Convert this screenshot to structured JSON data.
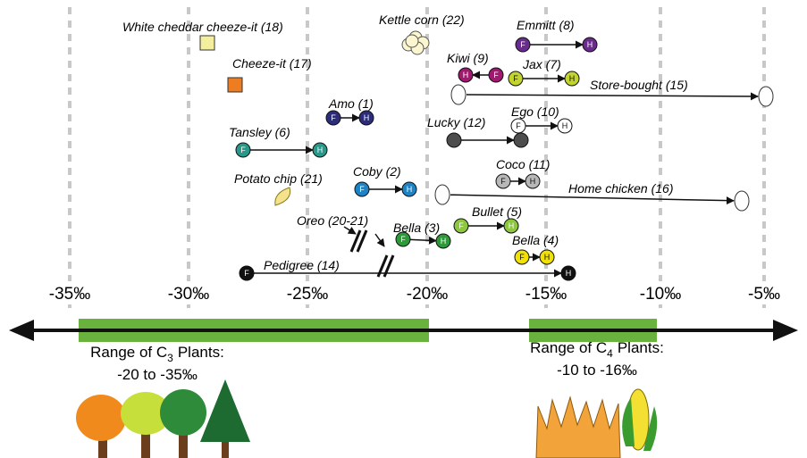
{
  "axis": {
    "ticks": [
      "-35‰",
      "-30‰",
      "-25‰",
      "-20‰",
      "-15‰",
      "-10‰",
      "-5‰"
    ]
  },
  "ranges": [
    {
      "prefix": "Range of C",
      "sub": "3",
      "suffix": "Plants:",
      "span": "-20 to -35‰"
    },
    {
      "prefix": "Range of C",
      "sub": "4",
      "suffix": "Plants:",
      "span": "-10 to -16‰"
    }
  ],
  "items": [
    {
      "label": "White cheddar cheeze-it (18)"
    },
    {
      "label": "Cheeze-it (17)"
    },
    {
      "label": "Kettle corn (22)"
    },
    {
      "label": "Emmitt (8)",
      "from": "F",
      "to": "H"
    },
    {
      "label": "Kiwi (9)",
      "from": "F",
      "to": "H"
    },
    {
      "label": "Jax (7)",
      "from": "F",
      "to": "H"
    },
    {
      "label": "Store-bought (15)"
    },
    {
      "label": "Amo (1)",
      "from": "F",
      "to": "H"
    },
    {
      "label": "Lucky (12)"
    },
    {
      "label": "Ego (10)",
      "from": "F",
      "to": "H"
    },
    {
      "label": "Tansley (6)",
      "from": "F",
      "to": "H"
    },
    {
      "label": "Coco (11)",
      "from": "F",
      "to": "H"
    },
    {
      "label": "Potato chip (21)"
    },
    {
      "label": "Coby (2)",
      "from": "F",
      "to": "H"
    },
    {
      "label": "Home chicken (16)"
    },
    {
      "label": "Oreo (20-21)"
    },
    {
      "label": "Bella (3)",
      "from": "F",
      "to": "H"
    },
    {
      "label": "Bullet (5)",
      "from": "F",
      "to": "H"
    },
    {
      "label": "Bella (4)",
      "from": "F",
      "to": "H"
    },
    {
      "label": "Pedigree (14)",
      "from": "F",
      "to": "H"
    }
  ]
}
